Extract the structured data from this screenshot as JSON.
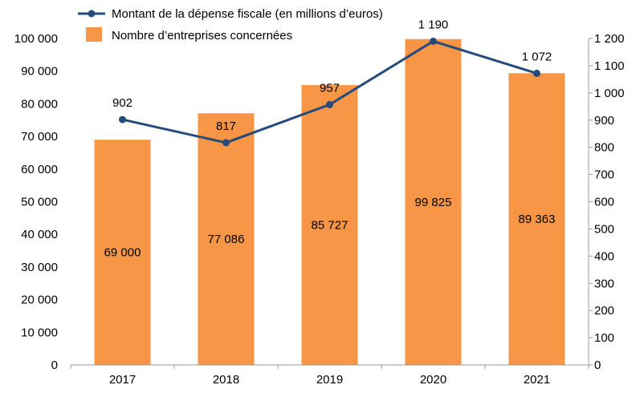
{
  "chart_data": {
    "type": "bar+line",
    "categories": [
      "2017",
      "2018",
      "2019",
      "2020",
      "2021"
    ],
    "series": [
      {
        "name": "Nombre d’entreprises concernées",
        "type": "bar",
        "axis": "left",
        "color": "#F79646",
        "values": [
          69000,
          77086,
          85727,
          99825,
          89363
        ],
        "labels": [
          "69 000",
          "77 086",
          "85 727",
          "99 825",
          "89 363"
        ]
      },
      {
        "name": "Montant de la dépense fiscale (en millions d’euros)",
        "type": "line",
        "axis": "right",
        "color": "#254A7C",
        "values": [
          902,
          817,
          957,
          1190,
          1072
        ],
        "labels": [
          "902",
          "817",
          "957",
          "1 190",
          "1 072"
        ]
      }
    ],
    "y_left": {
      "range": [
        0,
        100000
      ],
      "ticks": [
        "0",
        "10 000",
        "20 000",
        "30 000",
        "40 000",
        "50 000",
        "60 000",
        "70 000",
        "80 000",
        "90 000",
        "100 000"
      ]
    },
    "y_right": {
      "range": [
        0,
        1200
      ],
      "ticks": [
        "0",
        "100",
        "200",
        "300",
        "400",
        "500",
        "600",
        "700",
        "800",
        "900",
        "1 000",
        "1 100",
        "1 200"
      ]
    },
    "grid": false,
    "legend": "top-left"
  }
}
